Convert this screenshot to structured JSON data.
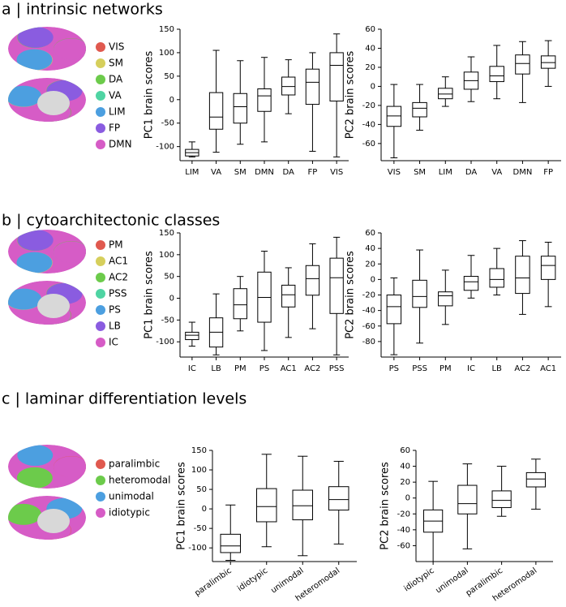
{
  "panels": [
    {
      "title": "a | intrinsic networks",
      "legend": [
        {
          "label": "VIS",
          "color": "#e0594f"
        },
        {
          "label": "SM",
          "color": "#d6cf5c"
        },
        {
          "label": "DA",
          "color": "#6ccb4b"
        },
        {
          "label": "VA",
          "color": "#4fd4a3"
        },
        {
          "label": "LIM",
          "color": "#4c9fe0"
        },
        {
          "label": "FP",
          "color": "#8a5ce0"
        },
        {
          "label": "DMN",
          "color": "#d65cc6"
        }
      ]
    },
    {
      "title": "b | cytoarchitectonic classes",
      "legend": [
        {
          "label": "PM",
          "color": "#e0594f"
        },
        {
          "label": "AC1",
          "color": "#d6cf5c"
        },
        {
          "label": "AC2",
          "color": "#6ccb4b"
        },
        {
          "label": "PSS",
          "color": "#4fd4a3"
        },
        {
          "label": "PS",
          "color": "#4c9fe0"
        },
        {
          "label": "LB",
          "color": "#8a5ce0"
        },
        {
          "label": "IC",
          "color": "#d65cc6"
        }
      ]
    },
    {
      "title": "c | laminar differentiation levels",
      "legend": [
        {
          "label": "paralimbic",
          "color": "#e0594f"
        },
        {
          "label": "heteromodal",
          "color": "#6ccb4b"
        },
        {
          "label": "unimodal",
          "color": "#4c9fe0"
        },
        {
          "label": "idiotypic",
          "color": "#d65cc6"
        }
      ]
    }
  ],
  "chart_data": [
    {
      "type": "box",
      "ylabel": "PC1 brain scores",
      "categories": [
        "LIM",
        "VA",
        "SM",
        "DMN",
        "DA",
        "FP",
        "VIS"
      ],
      "values": [
        [
          -122,
          -120,
          -113,
          -106,
          -90
        ],
        [
          -112,
          -63,
          -37,
          15,
          105
        ],
        [
          -95,
          -50,
          -15,
          13,
          83
        ],
        [
          -90,
          -25,
          8,
          23,
          90
        ],
        [
          -30,
          10,
          28,
          48,
          85
        ],
        [
          -110,
          -10,
          37,
          65,
          100
        ],
        [
          -122,
          -3,
          73,
          100,
          140
        ]
      ],
      "ylim": [
        -130,
        150
      ],
      "yticks": [
        -100,
        -50,
        0,
        50,
        100,
        150
      ]
    },
    {
      "type": "box",
      "ylabel": "PC2 brain scores",
      "categories": [
        "VIS",
        "SM",
        "LIM",
        "DA",
        "VA",
        "DMN",
        "FP"
      ],
      "values": [
        [
          -75,
          -42,
          -31,
          -21,
          2
        ],
        [
          -46,
          -32,
          -23,
          -17,
          2
        ],
        [
          -21,
          -13,
          -8,
          -2,
          10
        ],
        [
          -16,
          -3,
          6,
          15,
          31
        ],
        [
          -13,
          5,
          11,
          21,
          43
        ],
        [
          -17,
          13,
          24,
          33,
          47
        ],
        [
          0,
          19,
          25,
          32,
          48
        ]
      ],
      "ylim": [
        -78,
        60
      ],
      "yticks": [
        -60,
        -40,
        -20,
        0,
        20,
        40,
        60
      ]
    },
    {
      "type": "box",
      "ylabel": "PC1 brain scores",
      "categories": [
        "IC",
        "LB",
        "PM",
        "PS",
        "AC1",
        "AC2",
        "PSS"
      ],
      "values": [
        [
          -110,
          -95,
          -85,
          -78,
          -55
        ],
        [
          -130,
          -112,
          -78,
          -45,
          10
        ],
        [
          -75,
          -47,
          -15,
          22,
          50
        ],
        [
          -120,
          -55,
          2,
          60,
          108
        ],
        [
          -90,
          -20,
          8,
          30,
          70
        ],
        [
          -70,
          7,
          45,
          75,
          125
        ],
        [
          -130,
          -35,
          47,
          92,
          140
        ]
      ],
      "ylim": [
        -135,
        150
      ],
      "yticks": [
        -100,
        -50,
        0,
        50,
        100,
        150
      ]
    },
    {
      "type": "box",
      "ylabel": "PC2 brain scores",
      "categories": [
        "PS",
        "PSS",
        "PM",
        "IC",
        "LB",
        "AC2",
        "AC1"
      ],
      "values": [
        [
          -97,
          -57,
          -35,
          -20,
          2
        ],
        [
          -82,
          -36,
          -22,
          -1,
          38
        ],
        [
          -58,
          -34,
          -21,
          -16,
          12
        ],
        [
          -24,
          -14,
          -3,
          4,
          31
        ],
        [
          -20,
          -10,
          0,
          14,
          40
        ],
        [
          -45,
          -18,
          2,
          30,
          50
        ],
        [
          -35,
          0,
          18,
          30,
          48
        ]
      ],
      "ylim": [
        -100,
        60
      ],
      "yticks": [
        -80,
        -60,
        -40,
        -20,
        0,
        20,
        40,
        60
      ]
    },
    {
      "type": "box",
      "ylabel": "PC1 brain scores",
      "categories": [
        "paralimbic",
        "idiotypic",
        "unimodal",
        "heteromodal"
      ],
      "xtick_rotation": -35,
      "values": [
        [
          -132,
          -112,
          -95,
          -65,
          10
        ],
        [
          -97,
          -33,
          6,
          52,
          140
        ],
        [
          -120,
          -28,
          8,
          48,
          135
        ],
        [
          -90,
          -3,
          24,
          57,
          122
        ]
      ],
      "ylim": [
        -135,
        150
      ],
      "yticks": [
        -100,
        -50,
        0,
        50,
        100,
        150
      ]
    },
    {
      "type": "box",
      "ylabel": "PC2 brain scores",
      "categories": [
        "idiotypic",
        "unimodal",
        "paralimbic",
        "heteromodal"
      ],
      "xtick_rotation": -35,
      "values": [
        [
          -80,
          -43,
          -29,
          -15,
          21
        ],
        [
          -64,
          -20,
          -7,
          16,
          43
        ],
        [
          -23,
          -12,
          -3,
          9,
          40
        ],
        [
          -14,
          14,
          24,
          32,
          49
        ]
      ],
      "ylim": [
        -80,
        60
      ],
      "yticks": [
        -60,
        -40,
        -20,
        0,
        20,
        40,
        60
      ]
    }
  ]
}
